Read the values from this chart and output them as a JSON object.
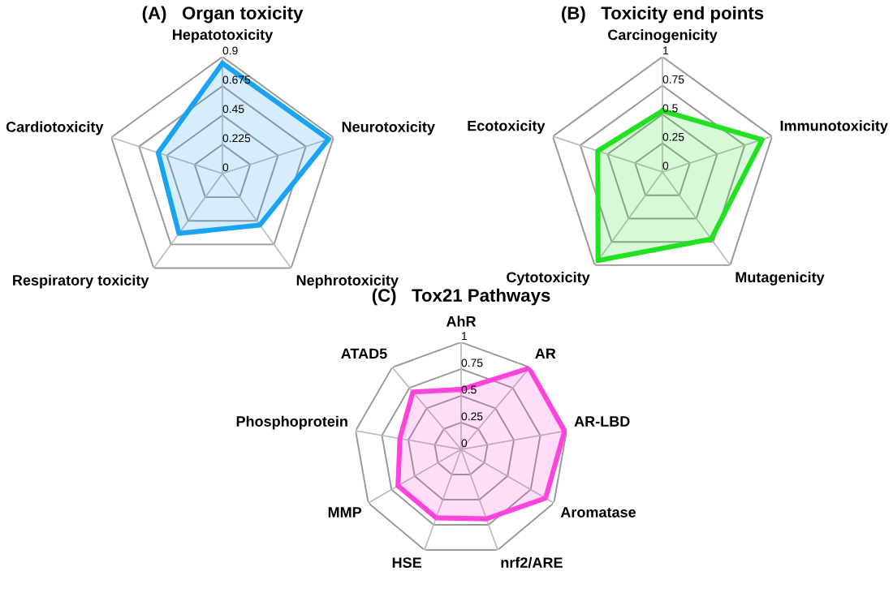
{
  "chart_data": [
    {
      "type": "radar",
      "title": "(A)   Organ toxicity",
      "categories": [
        "Hepatotoxicity",
        "Neurotoxicity",
        "Nephrotoxicity",
        "Respiratory toxicity",
        "Cardiotoxicity"
      ],
      "series": [
        {
          "color": "#1aa3f0",
          "values": [
            0.85,
            0.86,
            0.49,
            0.57,
            0.52
          ]
        }
      ],
      "ylim": [
        0,
        0.9
      ],
      "yticks": [
        0,
        0.225,
        0.45,
        0.675,
        0.9
      ],
      "grid": true
    },
    {
      "type": "radar",
      "title": "(B)   Toxicity end points",
      "categories": [
        "Carcinogenicity",
        "Immunotoxicity",
        "Mutagenicity",
        "Cytotoxicity",
        "Ecotoxicity"
      ],
      "series": [
        {
          "color": "#22e022",
          "values": [
            0.53,
            0.91,
            0.72,
            0.95,
            0.59
          ]
        }
      ],
      "ylim": [
        0,
        1
      ],
      "yticks": [
        0,
        0.25,
        0.5,
        0.75,
        1
      ],
      "grid": true
    },
    {
      "type": "radar",
      "title": "(C)   Tox21 Pathways",
      "categories": [
        "AhR",
        "AR",
        "AR-LBD",
        "Aromatase",
        "nrf2/ARE",
        "HSE",
        "MMP",
        "Phosphoprotein",
        "ATAD5"
      ],
      "series": [
        {
          "color": "#ff44dd",
          "values": [
            0.56,
            0.99,
            0.98,
            0.91,
            0.69,
            0.68,
            0.68,
            0.58,
            0.7
          ]
        }
      ],
      "ylim": [
        0,
        1
      ],
      "yticks": [
        0,
        0.25,
        0.5,
        0.75,
        1
      ],
      "grid": true
    }
  ]
}
